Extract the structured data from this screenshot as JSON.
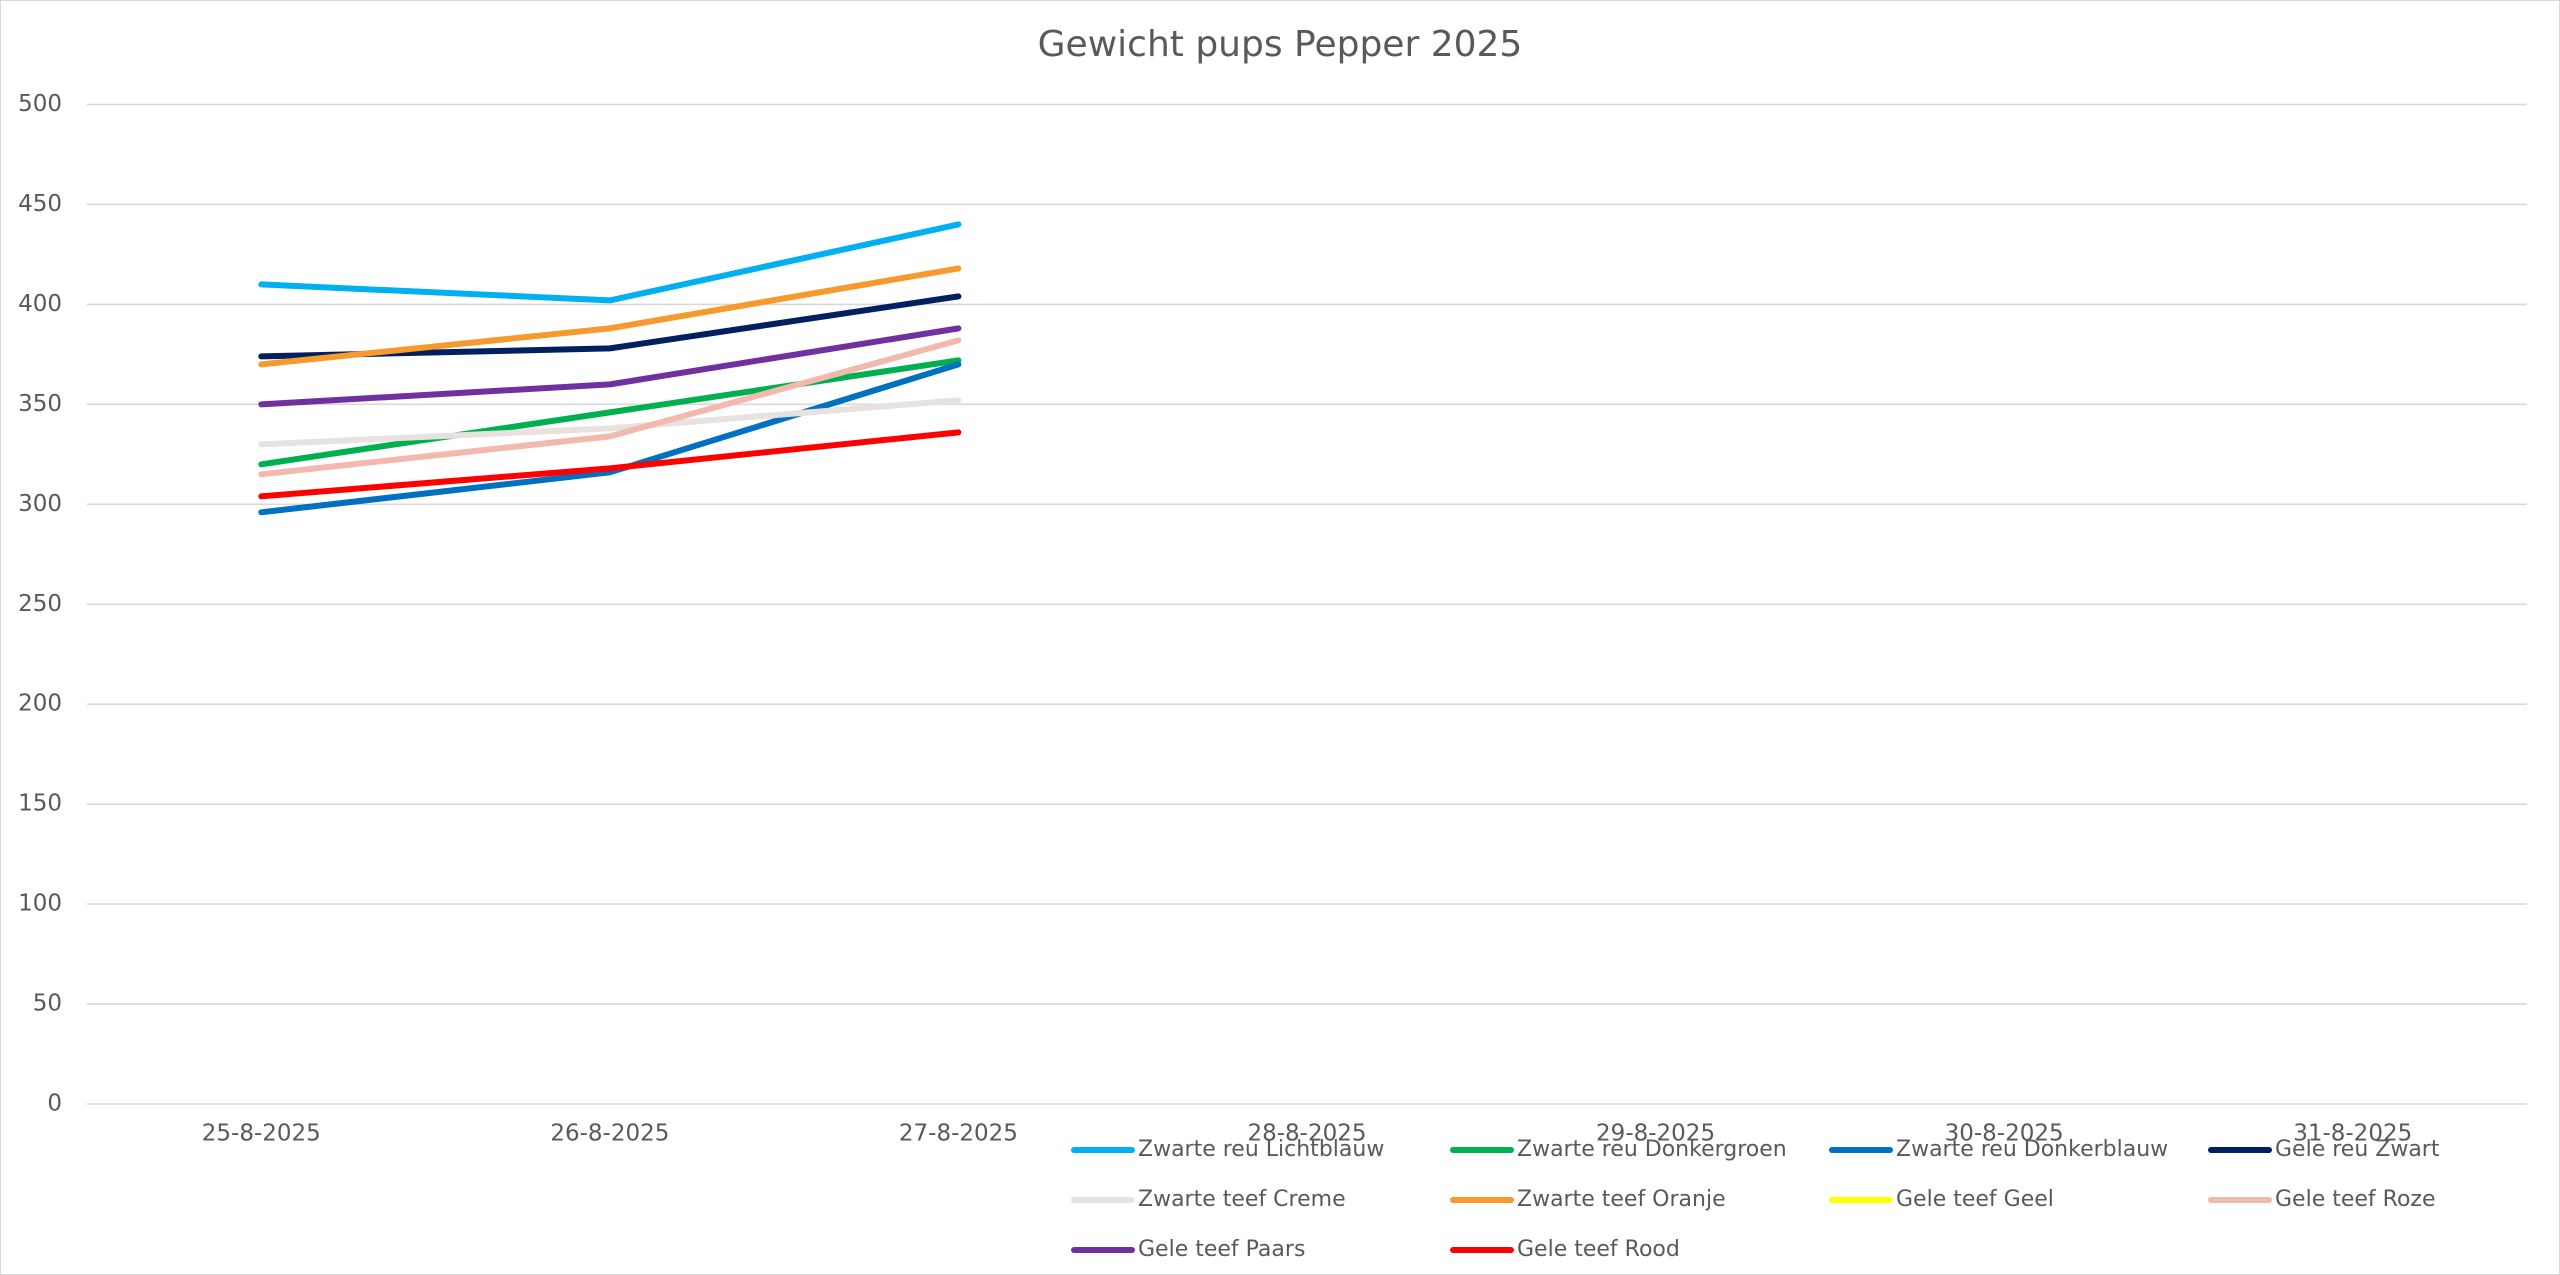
{
  "chart_data": {
    "type": "line",
    "title": "Gewicht pups Pepper 2025",
    "categories": [
      "25-8-2025",
      "26-8-2025",
      "27-8-2025",
      "28-8-2025",
      "29-8-2025",
      "30-8-2025",
      "31-8-2025"
    ],
    "ylim": [
      0,
      500
    ],
    "yticks": [
      0,
      50,
      100,
      150,
      200,
      250,
      300,
      350,
      400,
      450,
      500
    ],
    "grid": true,
    "legend": "bottom",
    "series": [
      {
        "name": "Zwarte reu Lichtblauw",
        "color": "#00b0f0",
        "values": [
          410,
          402,
          440,
          null,
          null,
          null,
          null
        ]
      },
      {
        "name": "Zwarte reu Donkergroen",
        "color": "#00b050",
        "values": [
          320,
          346,
          372,
          null,
          null,
          null,
          null
        ]
      },
      {
        "name": "Zwarte reu Donkerblauw",
        "color": "#0070c0",
        "values": [
          296,
          316,
          370,
          null,
          null,
          null,
          null
        ]
      },
      {
        "name": "Gele reu Zwart",
        "color": "#002060",
        "values": [
          374,
          378,
          404,
          null,
          null,
          null,
          null
        ]
      },
      {
        "name": "Zwarte teef Creme",
        "color": "#e7e1df",
        "values": [
          330,
          338,
          352,
          null,
          null,
          null,
          null
        ]
      },
      {
        "name": "Zwarte teef Oranje",
        "color": "#f79a2d",
        "values": [
          370,
          388,
          418,
          null,
          null,
          null,
          null
        ]
      },
      {
        "name": "Gele teef Geel",
        "color": "#ffff00",
        "values": [
          null,
          null,
          null,
          null,
          null,
          null,
          null
        ]
      },
      {
        "name": "Gele teef Roze",
        "color": "#f4b9ae",
        "values": [
          315,
          334,
          382,
          null,
          null,
          null,
          null
        ]
      },
      {
        "name": "Gele teef Paars",
        "color": "#7030a0",
        "values": [
          350,
          360,
          388,
          null,
          null,
          null,
          null
        ]
      },
      {
        "name": "Gele teef Rood",
        "color": "#ff0000",
        "values": [
          304,
          318,
          336,
          null,
          null,
          null,
          null
        ]
      }
    ]
  }
}
